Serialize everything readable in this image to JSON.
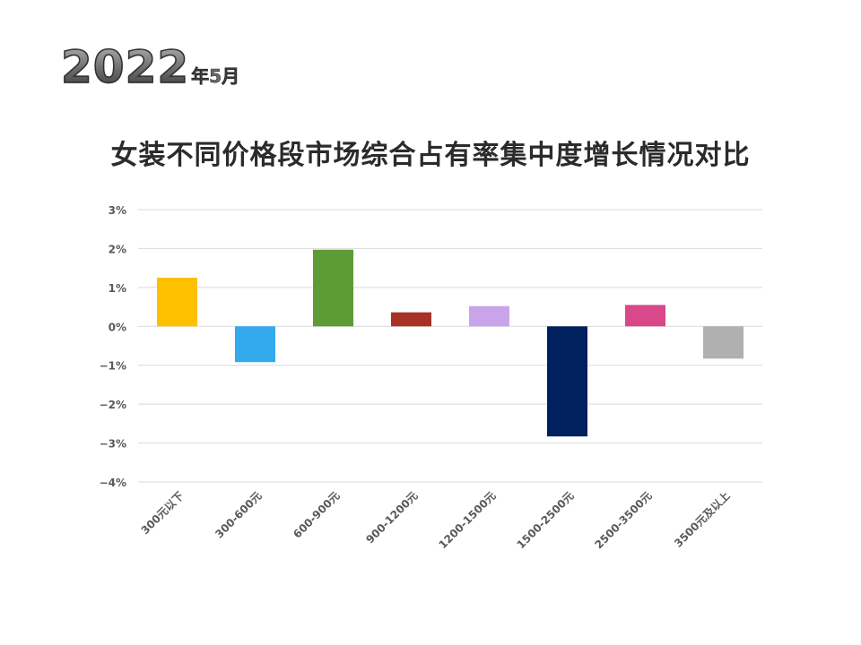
{
  "header": {
    "year": "2022",
    "month": "年5月"
  },
  "chart_data": {
    "type": "bar",
    "title": "女装不同价格段市场综合占有率集中度增长情况对比",
    "categories": [
      "300元以下",
      "300-600元",
      "600-900元",
      "900-1200元",
      "1200-1500元",
      "1500-2500元",
      "2500-3500元",
      "3500元及以上"
    ],
    "values": [
      1.25,
      -0.92,
      1.97,
      0.36,
      0.52,
      -2.83,
      0.55,
      -0.83
    ],
    "colors": [
      "#FFC000",
      "#33AAEE",
      "#5E9A35",
      "#A83226",
      "#C9A4EA",
      "#00205E",
      "#D8488A",
      "#B0B0B0"
    ],
    "ylim": [
      -4,
      3
    ],
    "yticks": [
      "3%",
      "2%",
      "1%",
      "0%",
      "−1%",
      "−2%",
      "−3%",
      "−4%"
    ],
    "xlabel": "",
    "ylabel": "",
    "grid": true,
    "legend": false
  }
}
